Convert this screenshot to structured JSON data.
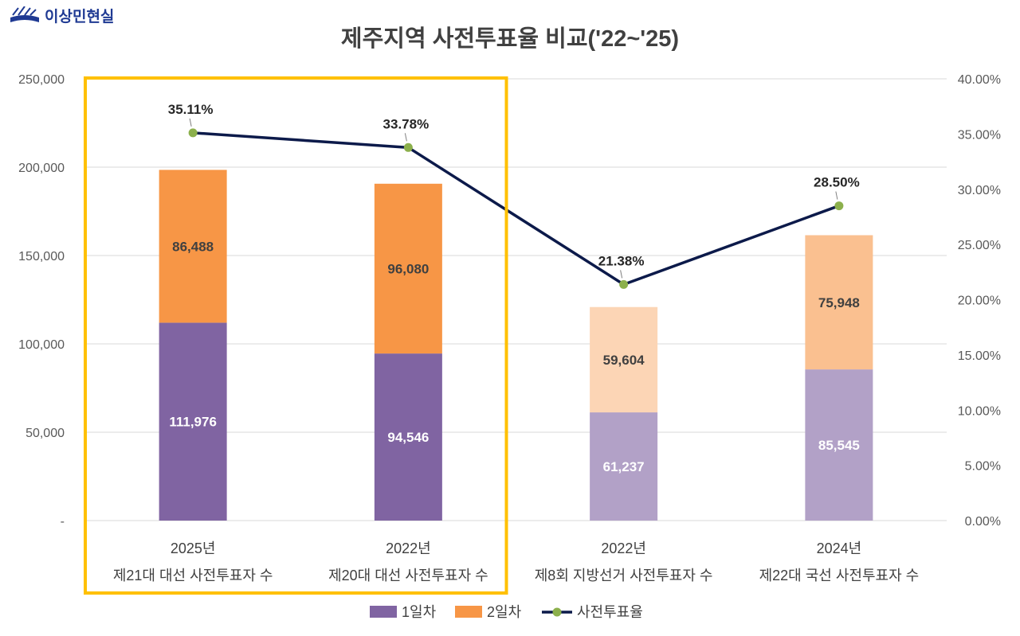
{
  "brand": {
    "name": "이상민현실",
    "color": "#1f3a93",
    "icon": "book-sun-logo-icon"
  },
  "chart_data": {
    "type": "bar",
    "stacked": true,
    "title": "제주지역 사전투표율 비교('22~'25)",
    "categories": [
      {
        "year": "2025년",
        "label": "제21대 대선 사전투표자 수"
      },
      {
        "year": "2022년",
        "label": "제20대 대선 사전투표자 수"
      },
      {
        "year": "2022년",
        "label": "제8회 지방선거 사전투표자 수"
      },
      {
        "year": "2024년",
        "label": "제22대 국선 사전투표자 수"
      }
    ],
    "series": [
      {
        "name": "1일차",
        "axis": "left",
        "values": [
          111976,
          94546,
          61237,
          85545
        ],
        "labels": [
          "111,976",
          "94,546",
          "61,237",
          "85,545"
        ],
        "colors": [
          "#8064a2",
          "#8064a2",
          "#b2a1c7",
          "#b2a1c7"
        ],
        "legend_color": "#8064a2"
      },
      {
        "name": "2일차",
        "axis": "left",
        "values": [
          86488,
          96080,
          59604,
          75948
        ],
        "labels": [
          "86,488",
          "96,080",
          "59,604",
          "75,948"
        ],
        "colors": [
          "#f79646",
          "#f79646",
          "#fcd5b5",
          "#fac090"
        ],
        "legend_color": "#f79646"
      },
      {
        "name": "사전투표율",
        "type": "line",
        "axis": "right",
        "values": [
          35.11,
          33.78,
          21.38,
          28.5
        ],
        "labels": [
          "35.11%",
          "33.78%",
          "21.38%",
          "28.50%"
        ],
        "line_color": "#0c1a4a",
        "marker_color": "#8cb04c"
      }
    ],
    "y_left": {
      "min": 0,
      "max": 250000,
      "ticks": [
        0,
        50000,
        100000,
        150000,
        200000,
        250000
      ],
      "tick_labels": [
        "-",
        "50,000",
        "100,000",
        "150,000",
        "200,000",
        "250,000"
      ]
    },
    "y_right": {
      "min": 0,
      "max": 40,
      "ticks": [
        0,
        5,
        10,
        15,
        20,
        25,
        30,
        35,
        40
      ],
      "tick_labels": [
        "0.00%",
        "5.00%",
        "10.00%",
        "15.00%",
        "20.00%",
        "25.00%",
        "30.00%",
        "35.00%",
        "40.00%"
      ]
    },
    "grid": true,
    "legend": "bottom",
    "highlight": {
      "categories": [
        0,
        1
      ],
      "color": "#ffc000"
    }
  }
}
